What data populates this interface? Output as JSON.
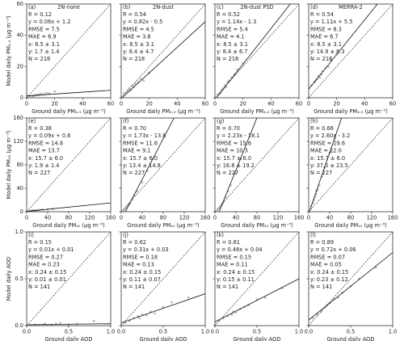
{
  "chart_data": [
    {
      "type": "scatter",
      "panel": "(a)",
      "title": "2N-none",
      "xlabel": "Ground daily PM₂.₅ (μg m⁻³)",
      "ylabel": "Model daily PM₂.₅ (μg m⁻³)",
      "ytick_labels": true,
      "annotations": [
        "R = 0.12",
        "y = 0.06x + 1.2",
        "RMSE = 7.5",
        "MAE = 6.9",
        "x: 8.5 ± 3.1",
        "y: 1.7 ± 1.4",
        "N = 218"
      ],
      "xlim": [
        0,
        60
      ],
      "xticks": [
        0,
        20,
        40,
        60
      ],
      "ylim": [
        0,
        60
      ],
      "yticks": [
        0,
        20,
        40,
        60
      ],
      "color": "#9a9a9a",
      "fit": {
        "slope": 0.06,
        "intercept": 1.2
      },
      "x": [
        2,
        4,
        5,
        6,
        7,
        8,
        9,
        10,
        12,
        14,
        16,
        20
      ],
      "y": [
        0.5,
        1,
        1.2,
        1.5,
        1.8,
        1.6,
        2,
        2.5,
        2.2,
        3,
        2.8,
        4
      ]
    },
    {
      "type": "scatter",
      "panel": "(b)",
      "title": "2N-dust",
      "xlabel": "Ground daily PM₂.₅ (μg m⁻³)",
      "ytick_labels": false,
      "annotations": [
        "R = 0.54",
        "y = 0.82x - 0.5",
        "RMSE = 4.5",
        "MAE = 3.8",
        "x: 8.5 ± 3.1",
        "y: 6.4 ± 4.7",
        "N = 218"
      ],
      "xlim": [
        0,
        60
      ],
      "xticks": [
        0,
        20,
        40,
        60
      ],
      "ylim": [
        0,
        60
      ],
      "yticks": [
        0,
        20,
        40,
        60
      ],
      "color": "#9a9a9a",
      "fit": {
        "slope": 0.82,
        "intercept": -0.5
      },
      "x": [
        2,
        4,
        5,
        6,
        7,
        8,
        9,
        10,
        12,
        14,
        16,
        20
      ],
      "y": [
        3,
        4,
        5,
        6,
        5,
        8,
        7,
        9,
        10,
        12,
        11,
        16
      ]
    },
    {
      "type": "scatter",
      "panel": "(c)",
      "title": "2N-dust PSD",
      "xlabel": "Ground daily PM₂.₅ (μg m⁻³)",
      "ytick_labels": false,
      "annotations": [
        "R = 0.52",
        "y = 1.14x - 1.3",
        "RMSE = 5.4",
        "MAE = 4.1",
        "x: 8.5 ± 3.1",
        "y: 8.4 ± 6.7",
        "N = 218"
      ],
      "xlim": [
        0,
        60
      ],
      "xticks": [
        0,
        20,
        40,
        60
      ],
      "ylim": [
        0,
        60
      ],
      "yticks": [
        0,
        20,
        40,
        60
      ],
      "color": "#9a9a9a",
      "fit": {
        "slope": 1.14,
        "intercept": -1.3
      },
      "x": [
        2,
        4,
        5,
        6,
        7,
        8,
        9,
        10,
        12,
        14,
        16,
        20
      ],
      "y": [
        2,
        3,
        5,
        6,
        8,
        7,
        10,
        11,
        13,
        15,
        18,
        22
      ]
    },
    {
      "type": "scatter",
      "panel": "(d)",
      "title": "MERRA-2",
      "xlabel": "Ground daily PM₂.₅ (μg m⁻³)",
      "ytick_labels": false,
      "annotations": [
        "R = 0.54",
        "y = 1.11x + 5.5",
        "RMSE = 8.3",
        "MAE = 6.7",
        "x: 8.5 ± 3.1",
        "y: 14.9 ± 6.3",
        "N = 218"
      ],
      "xlim": [
        0,
        60
      ],
      "xticks": [
        0,
        20,
        40,
        60
      ],
      "ylim": [
        0,
        60
      ],
      "yticks": [
        0,
        20,
        40,
        60
      ],
      "color": "#9a9a9a",
      "fit": {
        "slope": 1.11,
        "intercept": 5.5
      },
      "x": [
        2,
        4,
        5,
        6,
        7,
        8,
        9,
        10,
        12,
        14,
        16,
        20
      ],
      "y": [
        8,
        10,
        11,
        12,
        14,
        13,
        15,
        17,
        19,
        20,
        24,
        28
      ]
    },
    {
      "type": "scatter",
      "panel": "(e)",
      "xlabel": "Ground daily PM₁₀ (μg m⁻³)",
      "ylabel": "Model daily PM₁₀ (μg m⁻³)",
      "ytick_labels": true,
      "annotations": [
        "R = 0.38",
        "y = 0.09x + 0.6",
        "RMSE = 14.8",
        "MAE = 13.7",
        "x: 15.7 ± 6.0",
        "y: 1.9 ± 1.4",
        "N = 227"
      ],
      "xlim": [
        0,
        160
      ],
      "xticks": [
        0,
        40,
        80,
        120,
        160
      ],
      "ylim": [
        0,
        160
      ],
      "yticks": [
        0,
        40,
        80,
        120,
        160
      ],
      "color": "#9a9a9a",
      "fit": {
        "slope": 0.09,
        "intercept": 0.6
      },
      "x": [
        5,
        8,
        10,
        12,
        14,
        15,
        17,
        20,
        25,
        30,
        40,
        50
      ],
      "y": [
        1,
        1.5,
        1.8,
        2,
        2,
        1.9,
        2.2,
        2.5,
        3,
        3.5,
        4,
        5
      ]
    },
    {
      "type": "scatter",
      "panel": "(f)",
      "xlabel": "Ground daily PM₁₀ (μg m⁻³)",
      "ytick_labels": false,
      "annotations": [
        "R = 0.70",
        "y = 1.73x - 13.8",
        "RMSE = 11.6",
        "MAE = 9.1",
        "x: 15.7 ± 6.0",
        "y: 13.4 ± 14.8",
        "N = 227"
      ],
      "xlim": [
        0,
        160
      ],
      "xticks": [
        0,
        40,
        80,
        120,
        160
      ],
      "ylim": [
        0,
        160
      ],
      "yticks": [
        0,
        40,
        80,
        120,
        160
      ],
      "color": "#9a9a9a",
      "fit": {
        "slope": 1.73,
        "intercept": -13.8
      },
      "x": [
        5,
        8,
        10,
        12,
        14,
        15,
        17,
        20,
        25,
        30,
        40,
        50
      ],
      "y": [
        2,
        5,
        8,
        10,
        12,
        13,
        15,
        20,
        28,
        35,
        50,
        70
      ]
    },
    {
      "type": "scatter",
      "panel": "(g)",
      "xlabel": "Ground daily PM₁₀ (μg m⁻³)",
      "ytick_labels": false,
      "annotations": [
        "R = 0.70",
        "y = 2.23x - 18.1",
        "RMSE = 15.6",
        "MAE = 10.3",
        "x: 15.7 ± 6.0",
        "y: 16.8 ± 19.2",
        "N = 227"
      ],
      "xlim": [
        0,
        160
      ],
      "xticks": [
        0,
        40,
        80,
        120,
        160
      ],
      "ylim": [
        0,
        160
      ],
      "yticks": [
        0,
        40,
        80,
        120,
        160
      ],
      "color": "#9a9a9a",
      "fit": {
        "slope": 2.23,
        "intercept": -18.1
      },
      "x": [
        5,
        8,
        10,
        12,
        14,
        15,
        17,
        20,
        25,
        30,
        40,
        50
      ],
      "y": [
        3,
        6,
        8,
        10,
        13,
        15,
        18,
        25,
        35,
        45,
        65,
        90
      ]
    },
    {
      "type": "scatter",
      "panel": "(h)",
      "xlabel": "Ground daily PM₁₀ (μg m⁻³)",
      "ytick_labels": false,
      "annotations": [
        "R = 0.66",
        "y = 2.60x - 3.2",
        "RMSE = 29.6",
        "MAE = 22.0",
        "x: 15.7 ± 6.0",
        "y: 37.5 ± 23.5",
        "N = 227"
      ],
      "xlim": [
        0,
        160
      ],
      "xticks": [
        0,
        40,
        80,
        120,
        160
      ],
      "ylim": [
        0,
        160
      ],
      "yticks": [
        0,
        40,
        80,
        120,
        160
      ],
      "color": "#9a9a9a",
      "fit": {
        "slope": 2.6,
        "intercept": -3.2
      },
      "x": [
        5,
        8,
        10,
        12,
        14,
        15,
        17,
        20,
        25,
        30,
        40,
        50
      ],
      "y": [
        10,
        15,
        20,
        25,
        30,
        35,
        38,
        45,
        60,
        75,
        100,
        125
      ]
    },
    {
      "type": "scatter",
      "panel": "(i)",
      "xlabel": "Ground daily AOD",
      "ylabel": "Model daily AOD",
      "ytick_labels": true,
      "annotations": [
        "R = 0.15",
        "y = 0.01x + 0.01",
        "RMSE = 0.27",
        "MAE = 0.23",
        "x: 0.24 ± 0.15",
        "y: 0.01 ± 0.01",
        "N = 141"
      ],
      "xlim": [
        0,
        1
      ],
      "xticks": [
        {
          "value": 0,
          "label": "0.0"
        },
        0.5,
        {
          "value": 1,
          "label": "1.0"
        }
      ],
      "ylim": [
        0,
        1
      ],
      "yticks": [
        {
          "value": 0,
          "label": "0.0"
        },
        0.5,
        {
          "value": 1,
          "label": "1.0"
        }
      ],
      "color": "#9a9a9a",
      "fit": {
        "slope": 0.01,
        "intercept": 0.01
      },
      "x": [
        0.05,
        0.1,
        0.15,
        0.2,
        0.22,
        0.25,
        0.3,
        0.35,
        0.4,
        0.5,
        0.6,
        0.8
      ],
      "y": [
        0,
        0.01,
        0,
        0.01,
        0.02,
        0,
        0.01,
        0.02,
        0.03,
        0.01,
        0.02,
        0.05
      ]
    },
    {
      "type": "scatter",
      "panel": "(j)",
      "xlabel": "Ground daily AOD",
      "ytick_labels": false,
      "annotations": [
        "R = 0.62",
        "y = 0.31x + 0.03",
        "RMSE = 0.18",
        "MAE = 0.13",
        "x: 0.24 ± 0.15",
        "y: 0.11 ± 0.07",
        "N = 141"
      ],
      "xlim": [
        0,
        1
      ],
      "xticks": [
        {
          "value": 0,
          "label": "0.0"
        },
        0.5,
        {
          "value": 1,
          "label": "1.0"
        }
      ],
      "ylim": [
        0,
        1
      ],
      "yticks": [
        {
          "value": 0,
          "label": "0.0"
        },
        0.5,
        {
          "value": 1,
          "label": "1.0"
        }
      ],
      "color": "#9a9a9a",
      "fit": {
        "slope": 0.31,
        "intercept": 0.03
      },
      "x": [
        0.05,
        0.1,
        0.15,
        0.2,
        0.22,
        0.25,
        0.3,
        0.35,
        0.4,
        0.5,
        0.6,
        0.8
      ],
      "y": [
        0.03,
        0.05,
        0.08,
        0.1,
        0.08,
        0.12,
        0.11,
        0.15,
        0.13,
        0.2,
        0.25,
        0.3
      ]
    },
    {
      "type": "scatter",
      "panel": "(k)",
      "xlabel": "Ground daily AOD",
      "ytick_labels": false,
      "annotations": [
        "R = 0.61",
        "y = 0.46x + 0.04",
        "RMSE = 0.15",
        "MAE = 0.11",
        "x: 0.24 ± 0.15",
        "y: 0.15 ± 0.11",
        "N = 141"
      ],
      "xlim": [
        0,
        1
      ],
      "xticks": [
        {
          "value": 0,
          "label": "0.0"
        },
        0.5,
        {
          "value": 1,
          "label": "1.0"
        }
      ],
      "ylim": [
        0,
        1
      ],
      "yticks": [
        {
          "value": 0,
          "label": "0.0"
        },
        0.5,
        {
          "value": 1,
          "label": "1.0"
        }
      ],
      "color": "#9a9a9a",
      "fit": {
        "slope": 0.46,
        "intercept": 0.04
      },
      "x": [
        0.05,
        0.1,
        0.15,
        0.2,
        0.22,
        0.25,
        0.3,
        0.35,
        0.4,
        0.5,
        0.6,
        0.8
      ],
      "y": [
        0.05,
        0.08,
        0.1,
        0.12,
        0.15,
        0.14,
        0.18,
        0.2,
        0.22,
        0.28,
        0.3,
        0.4
      ]
    },
    {
      "type": "scatter",
      "panel": "(l)",
      "xlabel": "Ground daily AOD",
      "ytick_labels": false,
      "annotations": [
        "R = 0.89",
        "y = 0.72x + 0.06",
        "RMSE = 0.07",
        "MAE = 0.05",
        "x: 0.24 ± 0.15",
        "y: 0.23 ± 0.12",
        "N = 141"
      ],
      "xlim": [
        0,
        1
      ],
      "xticks": [
        {
          "value": 0,
          "label": "0.0"
        },
        0.5,
        {
          "value": 1,
          "label": "1.0"
        }
      ],
      "ylim": [
        0,
        1
      ],
      "yticks": [
        {
          "value": 0,
          "label": "0.0"
        },
        0.5,
        {
          "value": 1,
          "label": "1.0"
        }
      ],
      "color": "#9a9a9a",
      "fit": {
        "slope": 0.72,
        "intercept": 0.06
      },
      "x": [
        0.05,
        0.1,
        0.15,
        0.2,
        0.22,
        0.25,
        0.3,
        0.35,
        0.4,
        0.5,
        0.6,
        0.8
      ],
      "y": [
        0.08,
        0.12,
        0.15,
        0.2,
        0.22,
        0.24,
        0.28,
        0.3,
        0.35,
        0.42,
        0.5,
        0.62
      ]
    }
  ]
}
